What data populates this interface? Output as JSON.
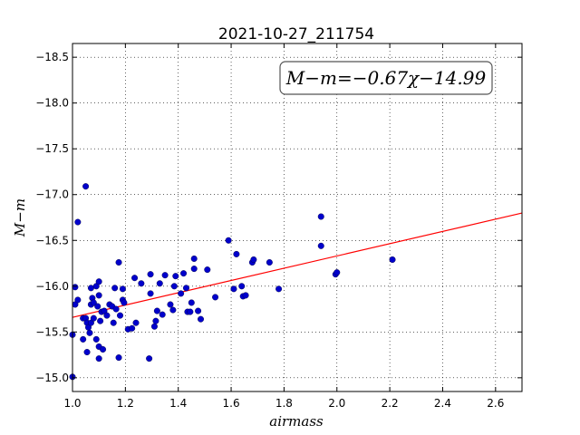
{
  "chart_data": {
    "type": "scatter",
    "title": "2021-10-27_211754",
    "xlabel": "airmass",
    "ylabel": "M−m",
    "xlim": [
      1.0,
      2.7
    ],
    "ylim": [
      -18.65,
      -14.85
    ],
    "y_inverted": true,
    "grid": true,
    "xticks": [
      1.0,
      1.2,
      1.4,
      1.6,
      1.8,
      2.0,
      2.2,
      2.4,
      2.6
    ],
    "xtick_labels": [
      "1.0",
      "1.2",
      "1.4",
      "1.6",
      "1.8",
      "2.0",
      "2.2",
      "2.4",
      "2.6"
    ],
    "yticks": [
      -15.0,
      -15.5,
      -16.0,
      -16.5,
      -17.0,
      -17.5,
      -18.0,
      -18.5
    ],
    "ytick_labels": [
      "−15.0",
      "−15.5",
      "−16.0",
      "−16.5",
      "−17.0",
      "−17.5",
      "−18.0",
      "−18.5"
    ],
    "annotation": "M−m=−0.67χ−14.99",
    "annotation_position": "top-right",
    "fit": {
      "slope": -0.67,
      "intercept": -14.99,
      "color": "#ff0000"
    },
    "point_color": "#0000cc",
    "points": [
      [
        1.0,
        -15.01
      ],
      [
        1.0,
        -15.47
      ],
      [
        1.01,
        -15.8
      ],
      [
        1.01,
        -15.99
      ],
      [
        1.02,
        -16.7
      ],
      [
        1.02,
        -15.85
      ],
      [
        1.04,
        -15.42
      ],
      [
        1.04,
        -15.65
      ],
      [
        1.05,
        -17.09
      ],
      [
        1.05,
        -15.65
      ],
      [
        1.055,
        -15.28
      ],
      [
        1.055,
        -15.6
      ],
      [
        1.06,
        -15.55
      ],
      [
        1.065,
        -15.49
      ],
      [
        1.07,
        -15.6
      ],
      [
        1.07,
        -15.8
      ],
      [
        1.07,
        -15.98
      ],
      [
        1.075,
        -15.87
      ],
      [
        1.08,
        -15.65
      ],
      [
        1.08,
        -15.82
      ],
      [
        1.09,
        -15.42
      ],
      [
        1.09,
        -16.0
      ],
      [
        1.095,
        -15.78
      ],
      [
        1.1,
        -15.21
      ],
      [
        1.1,
        -15.34
      ],
      [
        1.1,
        -15.9
      ],
      [
        1.1,
        -16.05
      ],
      [
        1.105,
        -15.62
      ],
      [
        1.11,
        -15.72
      ],
      [
        1.115,
        -15.31
      ],
      [
        1.12,
        -15.73
      ],
      [
        1.13,
        -15.68
      ],
      [
        1.14,
        -15.8
      ],
      [
        1.15,
        -15.78
      ],
      [
        1.155,
        -15.6
      ],
      [
        1.16,
        -15.98
      ],
      [
        1.165,
        -15.75
      ],
      [
        1.175,
        -15.22
      ],
      [
        1.175,
        -16.26
      ],
      [
        1.18,
        -15.68
      ],
      [
        1.19,
        -15.85
      ],
      [
        1.19,
        -15.97
      ],
      [
        1.195,
        -15.82
      ],
      [
        1.21,
        -15.53
      ],
      [
        1.225,
        -15.54
      ],
      [
        1.235,
        -16.09
      ],
      [
        1.24,
        -15.6
      ],
      [
        1.26,
        -16.03
      ],
      [
        1.29,
        -15.21
      ],
      [
        1.295,
        -15.92
      ],
      [
        1.295,
        -16.13
      ],
      [
        1.31,
        -15.56
      ],
      [
        1.315,
        -15.62
      ],
      [
        1.32,
        -15.73
      ],
      [
        1.33,
        -16.03
      ],
      [
        1.34,
        -15.69
      ],
      [
        1.35,
        -16.12
      ],
      [
        1.37,
        -15.8
      ],
      [
        1.38,
        -15.74
      ],
      [
        1.385,
        -16.0
      ],
      [
        1.39,
        -16.11
      ],
      [
        1.41,
        -15.92
      ],
      [
        1.42,
        -16.14
      ],
      [
        1.43,
        -15.98
      ],
      [
        1.435,
        -15.72
      ],
      [
        1.445,
        -15.72
      ],
      [
        1.45,
        -15.82
      ],
      [
        1.46,
        -16.19
      ],
      [
        1.46,
        -16.3
      ],
      [
        1.475,
        -15.73
      ],
      [
        1.485,
        -15.64
      ],
      [
        1.51,
        -16.18
      ],
      [
        1.54,
        -15.88
      ],
      [
        1.59,
        -16.5
      ],
      [
        1.61,
        -15.97
      ],
      [
        1.62,
        -16.35
      ],
      [
        1.64,
        -16.0
      ],
      [
        1.645,
        -15.89
      ],
      [
        1.655,
        -15.9
      ],
      [
        1.68,
        -16.26
      ],
      [
        1.685,
        -16.29
      ],
      [
        1.745,
        -16.26
      ],
      [
        1.78,
        -15.97
      ],
      [
        1.94,
        -16.44
      ],
      [
        1.94,
        -16.76
      ],
      [
        1.995,
        -16.13
      ],
      [
        2.0,
        -16.15
      ],
      [
        2.21,
        -16.29
      ]
    ]
  }
}
